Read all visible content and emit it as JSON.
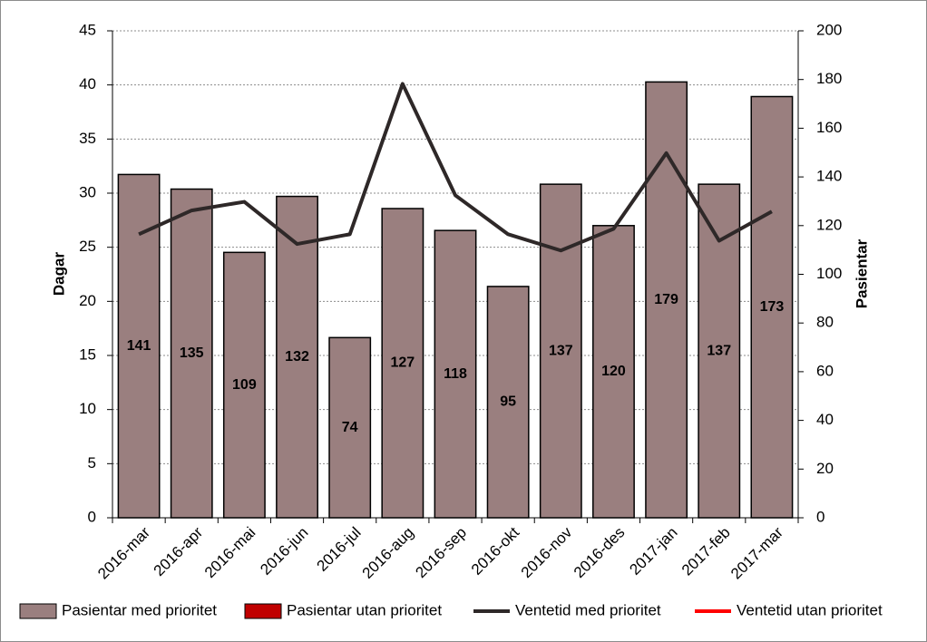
{
  "chart_data": {
    "type": "bar",
    "categories": [
      "2016-mar",
      "2016-apr",
      "2016-mai",
      "2016-jun",
      "2016-jul",
      "2016-aug",
      "2016-sep",
      "2016-okt",
      "2016-nov",
      "2016-des",
      "2017-jan",
      "2017-feb",
      "2017-mar"
    ],
    "ylabel": "Dagar",
    "y2label": "Pasientar",
    "ylim": [
      0,
      45
    ],
    "yticks": [
      0,
      5,
      10,
      15,
      20,
      25,
      30,
      35,
      40,
      45
    ],
    "y2lim": [
      0,
      200
    ],
    "y2ticks": [
      0,
      20,
      40,
      60,
      80,
      100,
      120,
      140,
      160,
      180,
      200
    ],
    "grid": true,
    "series": [
      {
        "name": "Pasientar med prioritet",
        "type": "bar",
        "axis": "y2",
        "color": "#9a7f7f",
        "values": [
          141,
          135,
          109,
          132,
          74,
          127,
          118,
          95,
          137,
          120,
          179,
          137,
          173
        ]
      },
      {
        "name": "Pasientar utan prioritet",
        "type": "bar",
        "axis": "y2",
        "color": "#c00000",
        "values": [
          null,
          null,
          null,
          null,
          null,
          null,
          null,
          null,
          null,
          null,
          null,
          null,
          null
        ]
      },
      {
        "name": "Ventetid med prioritet",
        "type": "line",
        "axis": "y",
        "color": "#2e2828",
        "values": [
          26.2,
          28.4,
          29.2,
          25.3,
          26.2,
          40.1,
          29.8,
          26.2,
          24.7,
          26.7,
          33.7,
          25.6,
          28.3
        ]
      },
      {
        "name": "Ventetid utan prioritet",
        "type": "line",
        "axis": "y",
        "color": "#ff0000",
        "values": [
          null,
          null,
          null,
          null,
          null,
          null,
          null,
          null,
          null,
          null,
          null,
          null,
          null
        ]
      }
    ]
  }
}
